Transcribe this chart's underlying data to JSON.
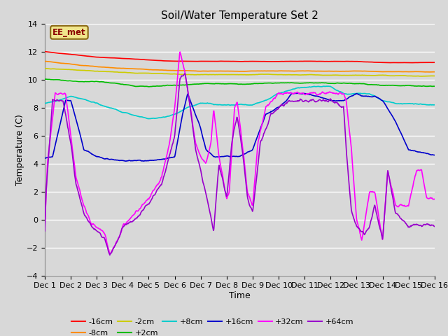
{
  "title": "Soil/Water Temperature Set 2",
  "xlabel": "Time",
  "ylabel": "Temperature (C)",
  "ylim": [
    -4,
    14
  ],
  "yticks": [
    -4,
    -2,
    0,
    2,
    4,
    6,
    8,
    10,
    12,
    14
  ],
  "xlim": [
    0,
    15
  ],
  "xtick_labels": [
    "Dec 1",
    "Dec 2",
    "Dec 3",
    "Dec 4",
    "Dec 5",
    "Dec 6",
    "Dec 7",
    "Dec 8",
    "Dec 9",
    "Dec 10",
    "Dec 11",
    "Dec 12",
    "Dec 13",
    "Dec 14",
    "Dec 15",
    "Dec 16"
  ],
  "background_color": "#d8d8d8",
  "plot_bg_color": "#d8d8d8",
  "grid_color": "#ffffff",
  "annotation_label": "EE_met",
  "annotation_color": "#8B0000",
  "annotation_bg": "#f0e68c",
  "series": {
    "-16cm": {
      "color": "#ff0000",
      "lw": 1.2
    },
    "-8cm": {
      "color": "#ff8c00",
      "lw": 1.2
    },
    "-2cm": {
      "color": "#cccc00",
      "lw": 1.2
    },
    "+2cm": {
      "color": "#00bb00",
      "lw": 1.2
    },
    "+8cm": {
      "color": "#00cccc",
      "lw": 1.2
    },
    "+16cm": {
      "color": "#0000cc",
      "lw": 1.2
    },
    "+32cm": {
      "color": "#ff00ff",
      "lw": 1.2
    },
    "+64cm": {
      "color": "#9900cc",
      "lw": 1.2
    }
  }
}
